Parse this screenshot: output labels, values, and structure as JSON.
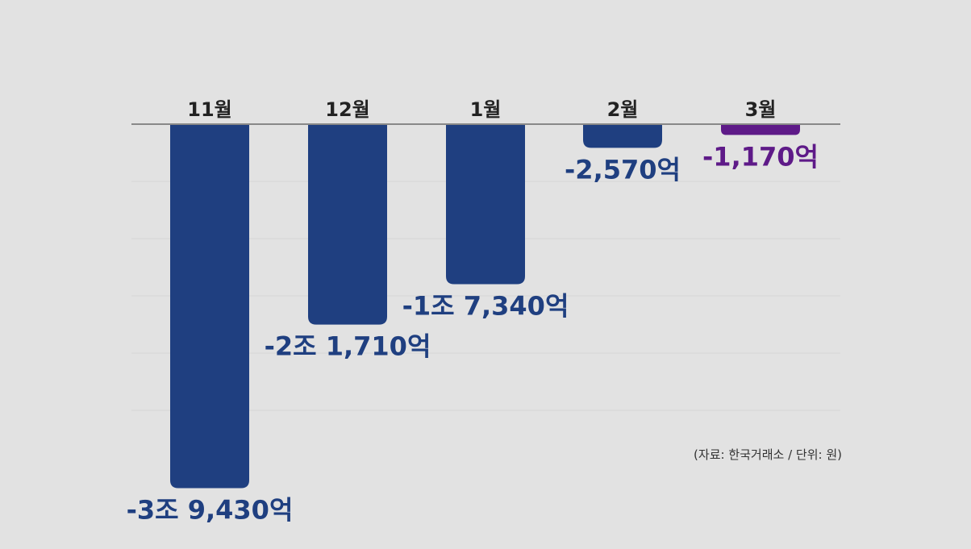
{
  "chart_data": {
    "type": "bar",
    "categories": [
      "11월",
      "12월",
      "1월",
      "2월",
      "3월"
    ],
    "values": [
      -39430,
      -21710,
      -17340,
      -2570,
      -1170
    ],
    "value_labels": [
      "-3조 9,430억",
      "-2조 1,710억",
      "-1조 7,340억",
      "-2,570억",
      "-1,170억"
    ],
    "ylim": [
      -40000,
      0
    ],
    "grid": true,
    "colors": {
      "bar": "#1f3f80",
      "highlight_bar": "#5e1a88",
      "highlight_label": "#5e1a88",
      "label": "#1f3f80",
      "axis": "#888888",
      "grid": "#d6d6d6"
    },
    "highlight_index": 4
  },
  "source_note": "(자료: 한국거래소 / 단위: 원)"
}
